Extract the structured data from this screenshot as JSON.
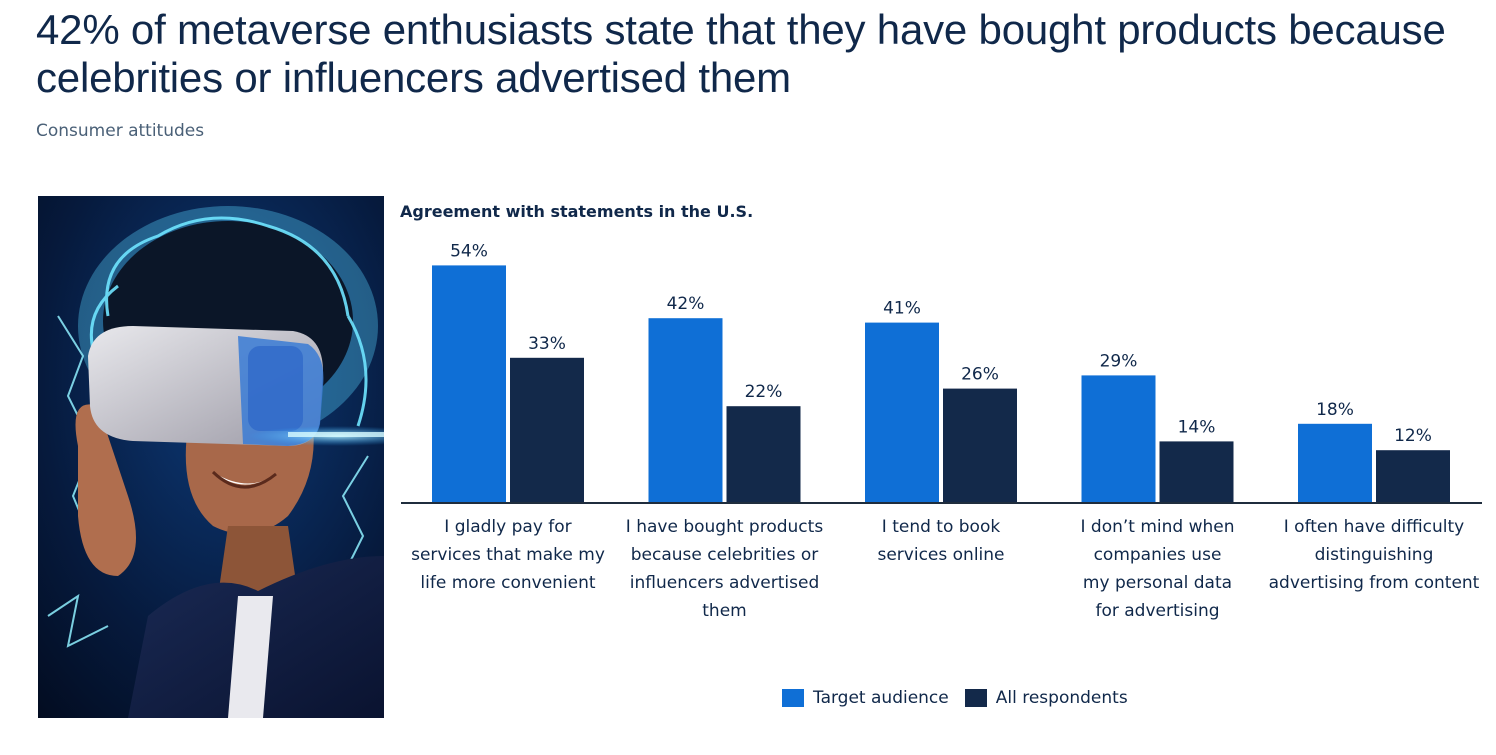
{
  "headline": "42% of metaverse enthusiasts state that they have bought products because celebrities or influencers advertised them",
  "subtitle": "Consumer attitudes",
  "colors": {
    "target": "#0f6fd6",
    "all": "#13294a",
    "axis": "#1f2d3d",
    "text": "#10284a"
  },
  "chart_data": {
    "type": "bar",
    "title": "Agreement with statements in the U.S.",
    "categories": [
      [
        "I gladly pay for",
        "services that make my",
        "life more convenient"
      ],
      [
        "I have bought products",
        "because celebrities or",
        "influencers advertised",
        "them"
      ],
      [
        "I tend to book",
        "services online"
      ],
      [
        "I don’t mind when",
        "companies use",
        "my personal data",
        "for advertising"
      ],
      [
        "I often have difficulty",
        "distinguishing",
        "advertising from content"
      ]
    ],
    "series": [
      {
        "name": "Target audience",
        "color": "#0f6fd6",
        "values": [
          54,
          42,
          41,
          29,
          18
        ]
      },
      {
        "name": "All respondents",
        "color": "#13294a",
        "values": [
          33,
          22,
          26,
          14,
          12
        ]
      }
    ],
    "value_suffix": "%",
    "ylim": [
      0,
      60
    ],
    "legend": "bottom-center"
  }
}
